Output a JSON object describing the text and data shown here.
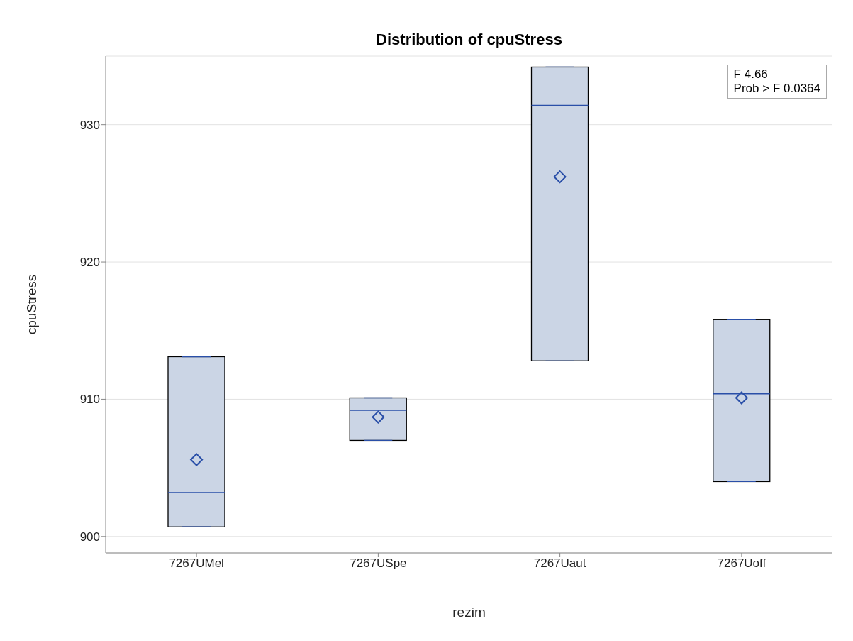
{
  "chart_data": {
    "type": "box",
    "title": "Distribution of cpuStress",
    "xlabel": "rezim",
    "ylabel": "cpuStress",
    "categories": [
      "7267UMel",
      "7267USpe",
      "7267Uaut",
      "7267Uoff"
    ],
    "boxes": [
      {
        "low": 900.7,
        "q1": 900.7,
        "median": 903.2,
        "q3": 913.1,
        "high": 913.1,
        "mean": 905.6
      },
      {
        "low": 907.0,
        "q1": 907.0,
        "median": 909.2,
        "q3": 910.1,
        "high": 910.1,
        "mean": 908.7
      },
      {
        "low": 912.8,
        "q1": 912.8,
        "median": 931.4,
        "q3": 934.2,
        "high": 934.2,
        "mean": 926.2
      },
      {
        "low": 904.0,
        "q1": 904.0,
        "median": 910.4,
        "q3": 915.8,
        "high": 915.8,
        "mean": 910.1
      }
    ],
    "color": "#cbd5e5",
    "ylim": [
      898.8,
      935
    ],
    "yticks": [
      900,
      910,
      920,
      930
    ],
    "grid": "y",
    "marker": "diamond",
    "annotations": [
      "F 4.66",
      "Prob > F 0.0364"
    ]
  }
}
